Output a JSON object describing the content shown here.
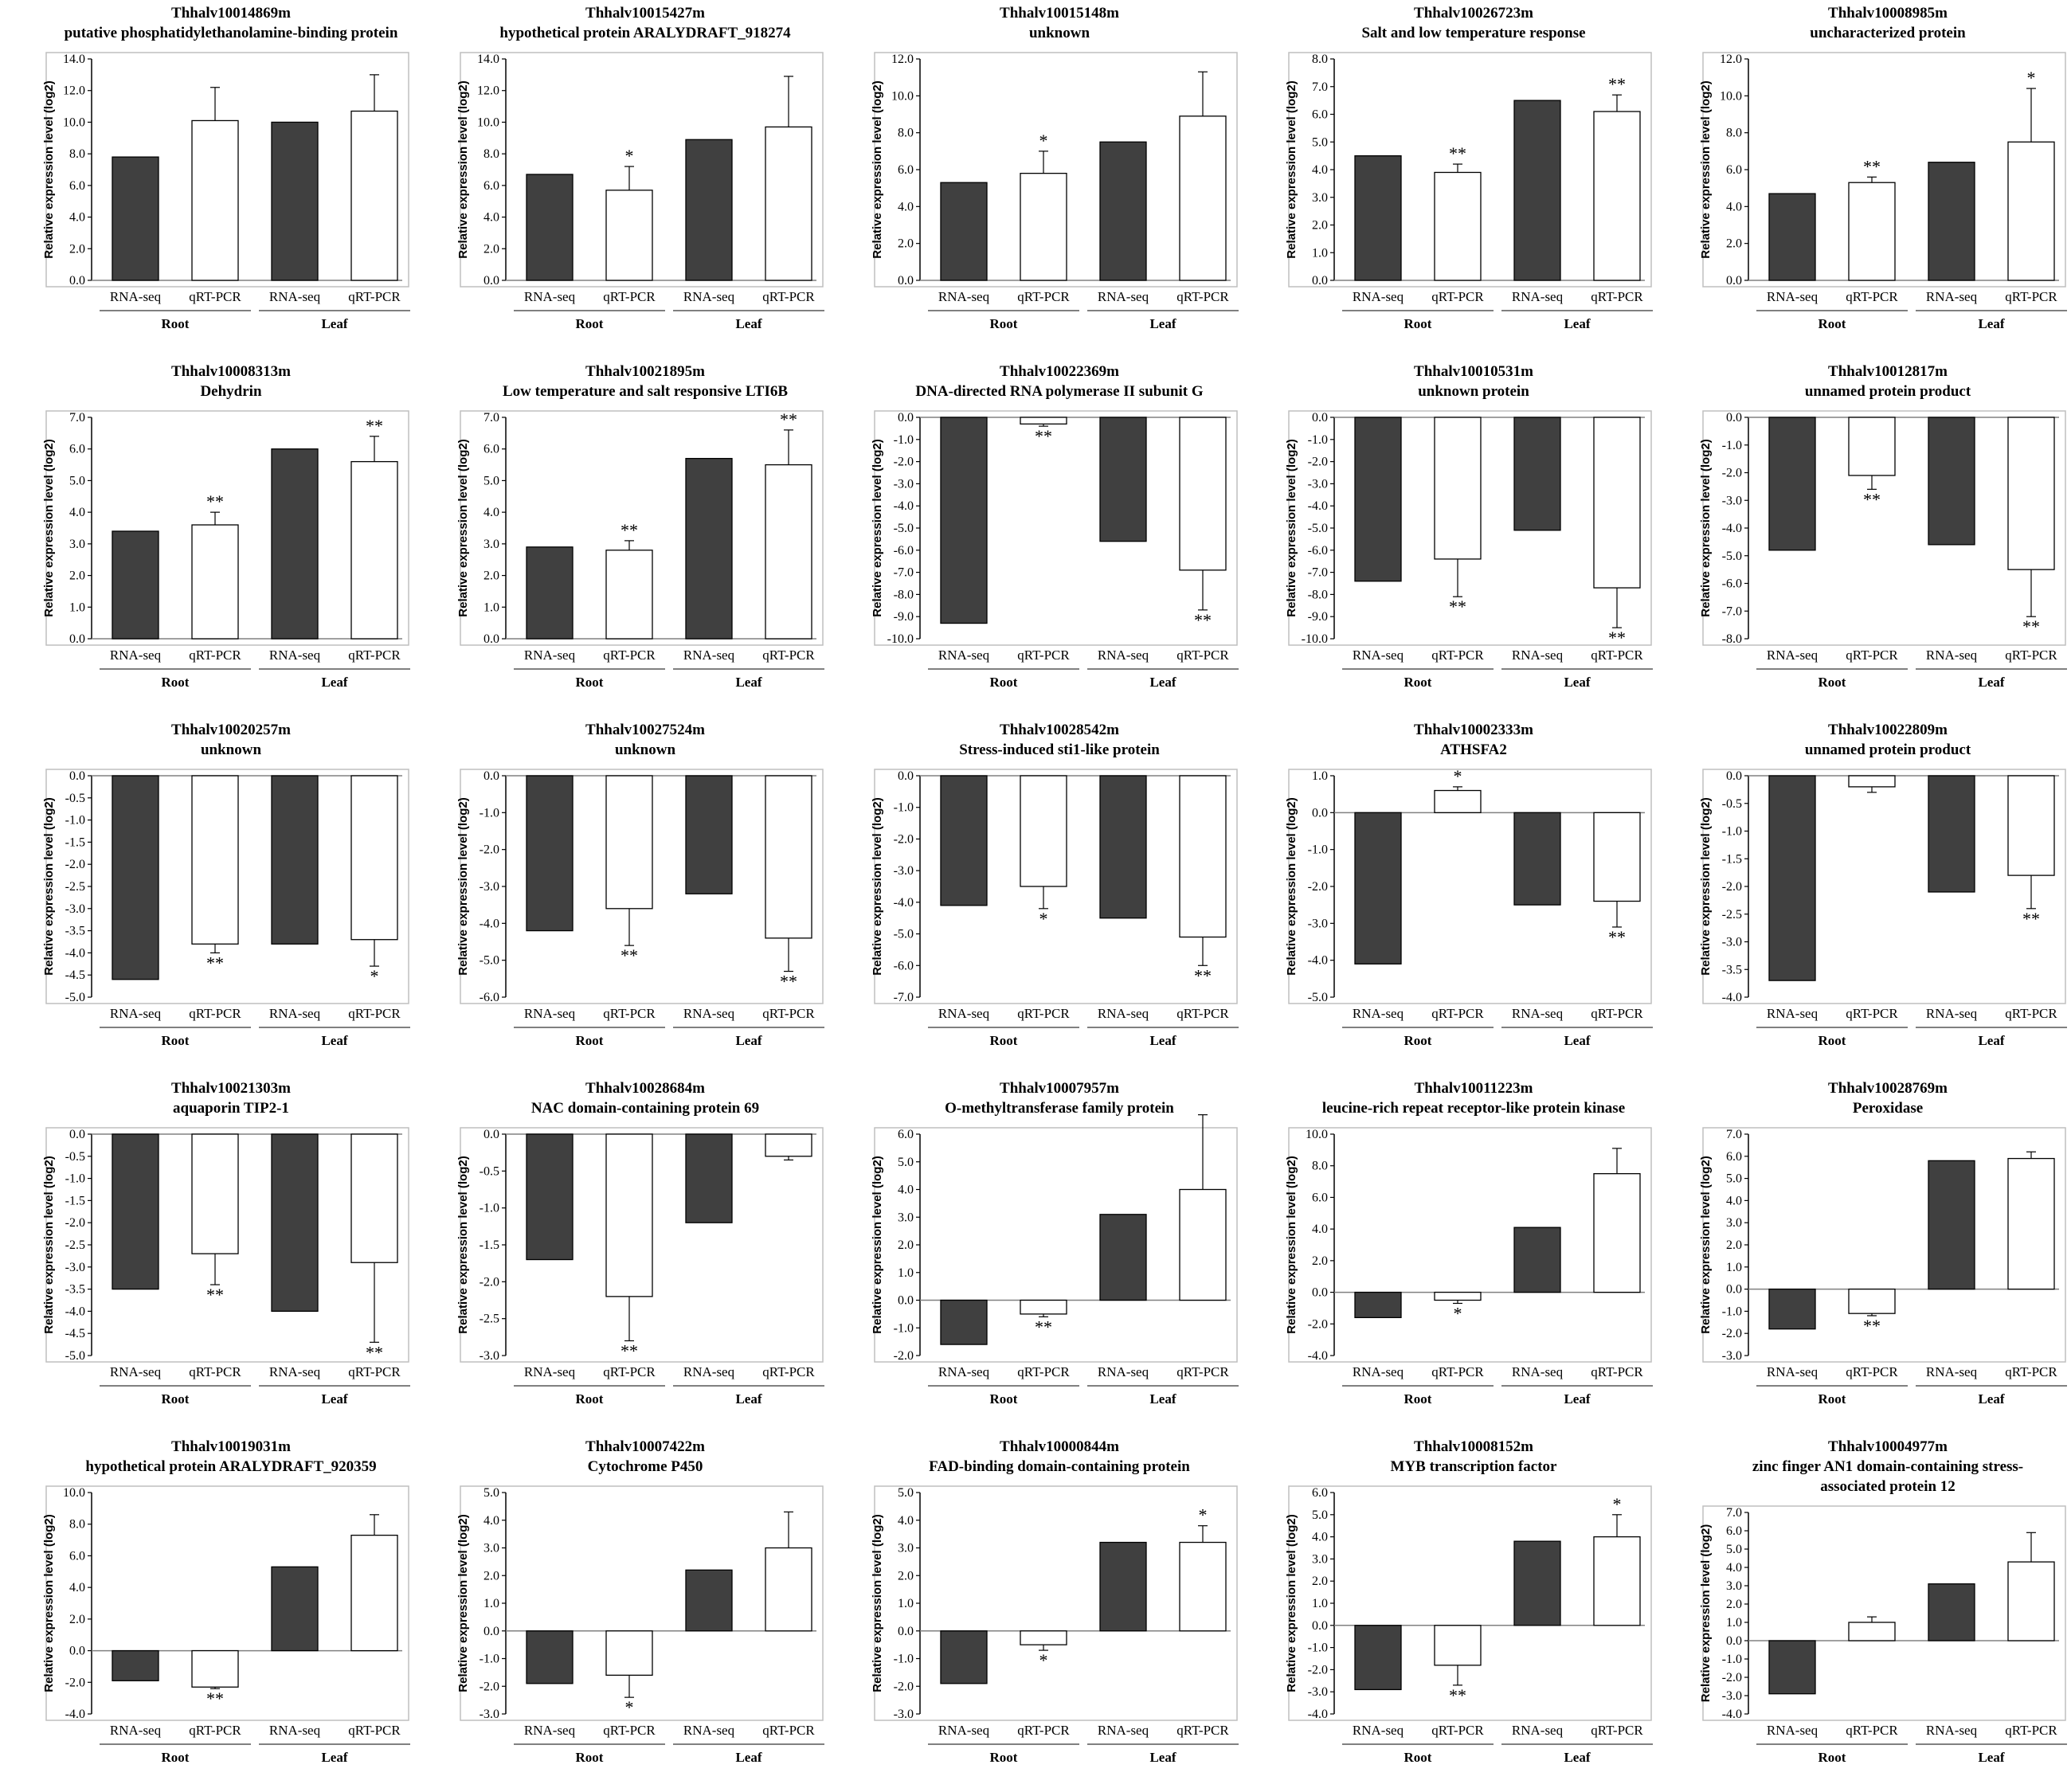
{
  "colors": {
    "rnaseq": "#404040",
    "qrtpcr": "#ffffff",
    "axis": "#000000",
    "frame": "#bfbfbf"
  },
  "chart_data": [
    {
      "type": "bar",
      "title": [
        "Thhalv10014869m",
        "putative phosphatidylethanolamine-binding protein"
      ],
      "ylabel": "Relative expression level (log2)",
      "ylim": [
        0,
        14
      ],
      "yticks": [
        0,
        2,
        4,
        6,
        8,
        10,
        12,
        14
      ],
      "categories": [
        "RNA-seq",
        "qRT-PCR",
        "RNA-seq",
        "qRT-PCR"
      ],
      "groups": [
        "Root",
        "Leaf"
      ],
      "values": [
        7.8,
        10.1,
        10.0,
        10.7
      ],
      "errors": [
        0,
        2.1,
        0,
        2.3
      ],
      "significance": [
        "",
        "",
        "",
        ""
      ]
    },
    {
      "type": "bar",
      "title": [
        "Thhalv10015427m",
        "hypothetical protein ARALYDRAFT_918274"
      ],
      "ylabel": "Relative expression level (log2)",
      "ylim": [
        0,
        14
      ],
      "yticks": [
        0,
        2,
        4,
        6,
        8,
        10,
        12,
        14
      ],
      "categories": [
        "RNA-seq",
        "qRT-PCR",
        "RNA-seq",
        "qRT-PCR"
      ],
      "groups": [
        "Root",
        "Leaf"
      ],
      "values": [
        6.7,
        5.7,
        8.9,
        9.7
      ],
      "errors": [
        0,
        1.5,
        0,
        3.2
      ],
      "significance": [
        "",
        "*",
        "",
        ""
      ]
    },
    {
      "type": "bar",
      "title": [
        "Thhalv10015148m",
        "unknown"
      ],
      "ylabel": "Relative expression level (log2)",
      "ylim": [
        0,
        12
      ],
      "yticks": [
        0,
        2,
        4,
        6,
        8,
        10,
        12
      ],
      "categories": [
        "RNA-seq",
        "qRT-PCR",
        "RNA-seq",
        "qRT-PCR"
      ],
      "groups": [
        "Root",
        "Leaf"
      ],
      "values": [
        5.3,
        5.8,
        7.5,
        8.9
      ],
      "errors": [
        0,
        1.2,
        0,
        2.4
      ],
      "significance": [
        "",
        "*",
        "",
        ""
      ]
    },
    {
      "type": "bar",
      "title": [
        "Thhalv10026723m",
        "Salt and low temperature response"
      ],
      "ylabel": "Relative expression level (log2)",
      "ylim": [
        0,
        8
      ],
      "yticks": [
        0,
        1,
        2,
        3,
        4,
        5,
        6,
        7,
        8
      ],
      "categories": [
        "RNA-seq",
        "qRT-PCR",
        "RNA-seq",
        "qRT-PCR"
      ],
      "groups": [
        "Root",
        "Leaf"
      ],
      "values": [
        4.5,
        3.9,
        6.5,
        6.1
      ],
      "errors": [
        0,
        0.3,
        0,
        0.6
      ],
      "significance": [
        "",
        "**",
        "",
        "**"
      ]
    },
    {
      "type": "bar",
      "title": [
        "Thhalv10008985m",
        "uncharacterized protein"
      ],
      "ylabel": "Relative expression level (log2)",
      "ylim": [
        0,
        12
      ],
      "yticks": [
        0,
        2,
        4,
        6,
        8,
        10,
        12
      ],
      "categories": [
        "RNA-seq",
        "qRT-PCR",
        "RNA-seq",
        "qRT-PCR"
      ],
      "groups": [
        "Root",
        "Leaf"
      ],
      "values": [
        4.7,
        5.3,
        6.4,
        7.5
      ],
      "errors": [
        0,
        0.3,
        0,
        2.9
      ],
      "significance": [
        "",
        "**",
        "",
        "*"
      ]
    },
    {
      "type": "bar",
      "title": [
        "Thhalv10008313m",
        "Dehydrin"
      ],
      "ylabel": "Relative expression level (log2)",
      "ylim": [
        0,
        7
      ],
      "yticks": [
        0,
        1,
        2,
        3,
        4,
        5,
        6,
        7
      ],
      "categories": [
        "RNA-seq",
        "qRT-PCR",
        "RNA-seq",
        "qRT-PCR"
      ],
      "groups": [
        "Root",
        "Leaf"
      ],
      "values": [
        3.4,
        3.6,
        6.0,
        5.6
      ],
      "errors": [
        0,
        0.4,
        0,
        0.8
      ],
      "significance": [
        "",
        "**",
        "",
        "**"
      ]
    },
    {
      "type": "bar",
      "title": [
        "Thhalv10021895m",
        "Low temperature and salt responsive LTI6B"
      ],
      "ylabel": "Relative expression level (log2)",
      "ylim": [
        0,
        7
      ],
      "yticks": [
        0,
        1,
        2,
        3,
        4,
        5,
        6,
        7
      ],
      "categories": [
        "RNA-seq",
        "qRT-PCR",
        "RNA-seq",
        "qRT-PCR"
      ],
      "groups": [
        "Root",
        "Leaf"
      ],
      "values": [
        2.9,
        2.8,
        5.7,
        5.5
      ],
      "errors": [
        0,
        0.3,
        0,
        1.1
      ],
      "significance": [
        "",
        "**",
        "",
        "**"
      ]
    },
    {
      "type": "bar",
      "title": [
        "Thhalv10022369m",
        "DNA-directed RNA polymerase II subunit G"
      ],
      "ylabel": "Relative expression level (log2)",
      "ylim": [
        -10,
        0
      ],
      "yticks": [
        0,
        -1,
        -2,
        -3,
        -4,
        -5,
        -6,
        -7,
        -8,
        -9,
        -10
      ],
      "categories": [
        "RNA-seq",
        "qRT-PCR",
        "RNA-seq",
        "qRT-PCR"
      ],
      "groups": [
        "Root",
        "Leaf"
      ],
      "values": [
        -9.3,
        -0.3,
        -5.6,
        -6.9
      ],
      "errors": [
        0,
        0.1,
        0,
        1.8
      ],
      "significance": [
        "",
        "**",
        "",
        "**"
      ]
    },
    {
      "type": "bar",
      "title": [
        "Thhalv10010531m",
        "unknown protein"
      ],
      "ylabel": "Relative expression level (log2)",
      "ylim": [
        -10,
        0
      ],
      "yticks": [
        0,
        -1,
        -2,
        -3,
        -4,
        -5,
        -6,
        -7,
        -8,
        -9,
        -10
      ],
      "categories": [
        "RNA-seq",
        "qRT-PCR",
        "RNA-seq",
        "qRT-PCR"
      ],
      "groups": [
        "Root",
        "Leaf"
      ],
      "values": [
        -7.4,
        -6.4,
        -5.1,
        -7.7
      ],
      "errors": [
        0,
        1.7,
        0,
        1.8
      ],
      "significance": [
        "",
        "**",
        "",
        "**"
      ]
    },
    {
      "type": "bar",
      "title": [
        "Thhalv10012817m",
        "unnamed protein product"
      ],
      "ylabel": "Relative expression level (log2)",
      "ylim": [
        -8,
        0
      ],
      "yticks": [
        0,
        -1,
        -2,
        -3,
        -4,
        -5,
        -6,
        -7,
        -8
      ],
      "categories": [
        "RNA-seq",
        "qRT-PCR",
        "RNA-seq",
        "qRT-PCR"
      ],
      "groups": [
        "Root",
        "Leaf"
      ],
      "values": [
        -4.8,
        -2.1,
        -4.6,
        -5.5
      ],
      "errors": [
        0,
        0.5,
        0,
        1.7
      ],
      "significance": [
        "",
        "**",
        "",
        "**"
      ]
    },
    {
      "type": "bar",
      "title": [
        "Thhalv10020257m",
        "unknown"
      ],
      "ylabel": "Relative expression level (log2)",
      "ylim": [
        -5,
        0
      ],
      "yticks": [
        0,
        -0.5,
        -1,
        -1.5,
        -2,
        -2.5,
        -3,
        -3.5,
        -4,
        -4.5,
        -5
      ],
      "categories": [
        "RNA-seq",
        "qRT-PCR",
        "RNA-seq",
        "qRT-PCR"
      ],
      "groups": [
        "Root",
        "Leaf"
      ],
      "values": [
        -4.6,
        -3.8,
        -3.8,
        -3.7
      ],
      "errors": [
        0,
        0.2,
        0,
        0.6
      ],
      "significance": [
        "",
        "**",
        "",
        "*"
      ]
    },
    {
      "type": "bar",
      "title": [
        "Thhalv10027524m",
        "unknown"
      ],
      "ylabel": "Relative expression level (log2)",
      "ylim": [
        -6,
        0
      ],
      "yticks": [
        0,
        -1,
        -2,
        -3,
        -4,
        -5,
        -6
      ],
      "categories": [
        "RNA-seq",
        "qRT-PCR",
        "RNA-seq",
        "qRT-PCR"
      ],
      "groups": [
        "Root",
        "Leaf"
      ],
      "values": [
        -4.2,
        -3.6,
        -3.2,
        -4.4
      ],
      "errors": [
        0,
        1.0,
        0,
        0.9
      ],
      "significance": [
        "",
        "**",
        "",
        "**"
      ]
    },
    {
      "type": "bar",
      "title": [
        "Thhalv10028542m",
        "Stress-induced sti1-like protein"
      ],
      "ylabel": "Relative expression level (log2)",
      "ylim": [
        -7,
        0
      ],
      "yticks": [
        0,
        -1,
        -2,
        -3,
        -4,
        -5,
        -6,
        -7
      ],
      "categories": [
        "RNA-seq",
        "qRT-PCR",
        "RNA-seq",
        "qRT-PCR"
      ],
      "groups": [
        "Root",
        "Leaf"
      ],
      "values": [
        -4.1,
        -3.5,
        -4.5,
        -5.1
      ],
      "errors": [
        0,
        0.7,
        0,
        0.9
      ],
      "significance": [
        "",
        "*",
        "",
        "**"
      ]
    },
    {
      "type": "bar",
      "title": [
        "Thhalv10002333m",
        "ATHSFA2"
      ],
      "ylabel": "Relative expression level (log2)",
      "ylim": [
        -5,
        1
      ],
      "yticks": [
        1,
        0,
        -1,
        -2,
        -3,
        -4,
        -5
      ],
      "categories": [
        "RNA-seq",
        "qRT-PCR",
        "RNA-seq",
        "qRT-PCR"
      ],
      "groups": [
        "Root",
        "Leaf"
      ],
      "values": [
        -4.1,
        0.6,
        -2.5,
        -2.4
      ],
      "errors": [
        0,
        0.1,
        0,
        0.7
      ],
      "significance": [
        "",
        "*",
        "",
        "**"
      ]
    },
    {
      "type": "bar",
      "title": [
        "Thhalv10022809m",
        "unnamed protein product"
      ],
      "ylabel": "Relative expression level (log2)",
      "ylim": [
        -4,
        0
      ],
      "yticks": [
        0,
        -0.5,
        -1,
        -1.5,
        -2,
        -2.5,
        -3,
        -3.5,
        -4
      ],
      "categories": [
        "RNA-seq",
        "qRT-PCR",
        "RNA-seq",
        "qRT-PCR"
      ],
      "groups": [
        "Root",
        "Leaf"
      ],
      "values": [
        -3.7,
        -0.2,
        -2.1,
        -1.8
      ],
      "errors": [
        0,
        0.1,
        0,
        0.6
      ],
      "significance": [
        "",
        "",
        "",
        "**"
      ]
    },
    {
      "type": "bar",
      "title": [
        "Thhalv10021303m",
        "aquaporin TIP2-1"
      ],
      "ylabel": "Relative expression level (log2)",
      "ylim": [
        -5,
        0
      ],
      "yticks": [
        0,
        -0.5,
        -1,
        -1.5,
        -2,
        -2.5,
        -3,
        -3.5,
        -4,
        -4.5,
        -5
      ],
      "categories": [
        "RNA-seq",
        "qRT-PCR",
        "RNA-seq",
        "qRT-PCR"
      ],
      "groups": [
        "Root",
        "Leaf"
      ],
      "values": [
        -3.5,
        -2.7,
        -4.0,
        -2.9
      ],
      "errors": [
        0,
        0.7,
        0,
        1.8
      ],
      "significance": [
        "",
        "**",
        "",
        "**"
      ]
    },
    {
      "type": "bar",
      "title": [
        "Thhalv10028684m",
        "NAC domain-containing protein 69"
      ],
      "ylabel": "Relative expression level (log2)",
      "ylim": [
        -3,
        0
      ],
      "yticks": [
        0,
        -0.5,
        -1,
        -1.5,
        -2,
        -2.5,
        -3
      ],
      "categories": [
        "RNA-seq",
        "qRT-PCR",
        "RNA-seq",
        "qRT-PCR"
      ],
      "groups": [
        "Root",
        "Leaf"
      ],
      "values": [
        -1.7,
        -2.2,
        -1.2,
        -0.3
      ],
      "errors": [
        0,
        0.6,
        0,
        0.05
      ],
      "significance": [
        "",
        "**",
        "",
        ""
      ]
    },
    {
      "type": "bar",
      "title": [
        "Thhalv10007957m",
        "O-methyltransferase family protein"
      ],
      "ylabel": "Relative expression level (log2)",
      "ylim": [
        -2,
        6
      ],
      "yticks": [
        6,
        5,
        4,
        3,
        2,
        1,
        0,
        -1,
        -2
      ],
      "categories": [
        "RNA-seq",
        "qRT-PCR",
        "RNA-seq",
        "qRT-PCR"
      ],
      "groups": [
        "Root",
        "Leaf"
      ],
      "values": [
        -1.6,
        -0.5,
        3.1,
        4.0
      ],
      "errors": [
        0,
        0.1,
        0,
        2.7
      ],
      "significance": [
        "",
        "**",
        "",
        ""
      ]
    },
    {
      "type": "bar",
      "title": [
        "Thhalv10011223m",
        "leucine-rich repeat receptor-like protein kinase"
      ],
      "ylabel": "Relative expression level (log2)",
      "ylim": [
        -4,
        10
      ],
      "yticks": [
        10,
        8,
        6,
        4,
        2,
        0,
        -2,
        -4
      ],
      "categories": [
        "RNA-seq",
        "qRT-PCR",
        "RNA-seq",
        "qRT-PCR"
      ],
      "groups": [
        "Root",
        "Leaf"
      ],
      "values": [
        -1.6,
        -0.5,
        4.1,
        7.5
      ],
      "errors": [
        0,
        0.2,
        0,
        1.6
      ],
      "significance": [
        "",
        "*",
        "",
        ""
      ]
    },
    {
      "type": "bar",
      "title": [
        "Thhalv10028769m",
        "Peroxidase"
      ],
      "ylabel": "Relative expression level (log2)",
      "ylim": [
        -3,
        7
      ],
      "yticks": [
        7,
        6,
        5,
        4,
        3,
        2,
        1,
        0,
        -1,
        -2,
        -3
      ],
      "categories": [
        "RNA-seq",
        "qRT-PCR",
        "RNA-seq",
        "qRT-PCR"
      ],
      "groups": [
        "Root",
        "Leaf"
      ],
      "values": [
        -1.8,
        -1.1,
        5.8,
        5.9
      ],
      "errors": [
        0,
        0.1,
        0,
        0.3
      ],
      "significance": [
        "",
        "**",
        "",
        ""
      ]
    },
    {
      "type": "bar",
      "title": [
        "Thhalv10019031m",
        "hypothetical protein ARALYDRAFT_920359"
      ],
      "ylabel": "Relative expression level (log2)",
      "ylim": [
        -4,
        10
      ],
      "yticks": [
        10,
        8,
        6,
        4,
        2,
        0,
        -2,
        -4
      ],
      "categories": [
        "RNA-seq",
        "qRT-PCR",
        "RNA-seq",
        "qRT-PCR"
      ],
      "groups": [
        "Root",
        "Leaf"
      ],
      "values": [
        -1.9,
        -2.3,
        5.3,
        7.3
      ],
      "errors": [
        0,
        0.1,
        0,
        1.3
      ],
      "significance": [
        "",
        "**",
        "",
        ""
      ]
    },
    {
      "type": "bar",
      "title": [
        "Thhalv10007422m",
        "Cytochrome P450"
      ],
      "ylabel": "Relative expression level (log2)",
      "ylim": [
        -3,
        5
      ],
      "yticks": [
        5,
        4,
        3,
        2,
        1,
        0,
        -1,
        -2,
        -3
      ],
      "categories": [
        "RNA-seq",
        "qRT-PCR",
        "RNA-seq",
        "qRT-PCR"
      ],
      "groups": [
        "Root",
        "Leaf"
      ],
      "values": [
        -1.9,
        -1.6,
        2.2,
        3.0
      ],
      "errors": [
        0,
        0.8,
        0,
        1.3
      ],
      "significance": [
        "",
        "*",
        "",
        ""
      ]
    },
    {
      "type": "bar",
      "title": [
        "Thhalv10000844m",
        "FAD-binding domain-containing protein"
      ],
      "ylabel": "Relative expression level (log2)",
      "ylim": [
        -3,
        5
      ],
      "yticks": [
        5,
        4,
        3,
        2,
        1,
        0,
        -1,
        -2,
        -3
      ],
      "categories": [
        "RNA-seq",
        "qRT-PCR",
        "RNA-seq",
        "qRT-PCR"
      ],
      "groups": [
        "Root",
        "Leaf"
      ],
      "values": [
        -1.9,
        -0.5,
        3.2,
        3.2
      ],
      "errors": [
        0,
        0.2,
        0,
        0.6
      ],
      "significance": [
        "",
        "*",
        "",
        "*"
      ]
    },
    {
      "type": "bar",
      "title": [
        "Thhalv10008152m",
        "MYB transcription factor"
      ],
      "ylabel": "Relative expression level (log2)",
      "ylim": [
        -4,
        6
      ],
      "yticks": [
        6,
        5,
        4,
        3,
        2,
        1,
        0,
        -1,
        -2,
        -3,
        -4
      ],
      "categories": [
        "RNA-seq",
        "qRT-PCR",
        "RNA-seq",
        "qRT-PCR"
      ],
      "groups": [
        "Root",
        "Leaf"
      ],
      "values": [
        -2.9,
        -1.8,
        3.8,
        4.0
      ],
      "errors": [
        0,
        0.9,
        0,
        1.0
      ],
      "significance": [
        "",
        "**",
        "",
        "*"
      ]
    },
    {
      "type": "bar",
      "title": [
        "Thhalv10004977m",
        "zinc finger AN1 domain-containing stress-",
        "associated protein 12"
      ],
      "ylabel": "Relative expression level (log2)",
      "ylim": [
        -4,
        7
      ],
      "yticks": [
        7,
        6,
        5,
        4,
        3,
        2,
        1,
        0,
        -1,
        -2,
        -3,
        -4
      ],
      "categories": [
        "RNA-seq",
        "qRT-PCR",
        "RNA-seq",
        "qRT-PCR"
      ],
      "groups": [
        "Root",
        "Leaf"
      ],
      "values": [
        -2.9,
        1.0,
        3.1,
        4.3
      ],
      "errors": [
        0,
        0.3,
        0,
        1.6
      ],
      "significance": [
        "",
        "",
        "",
        ""
      ]
    }
  ]
}
